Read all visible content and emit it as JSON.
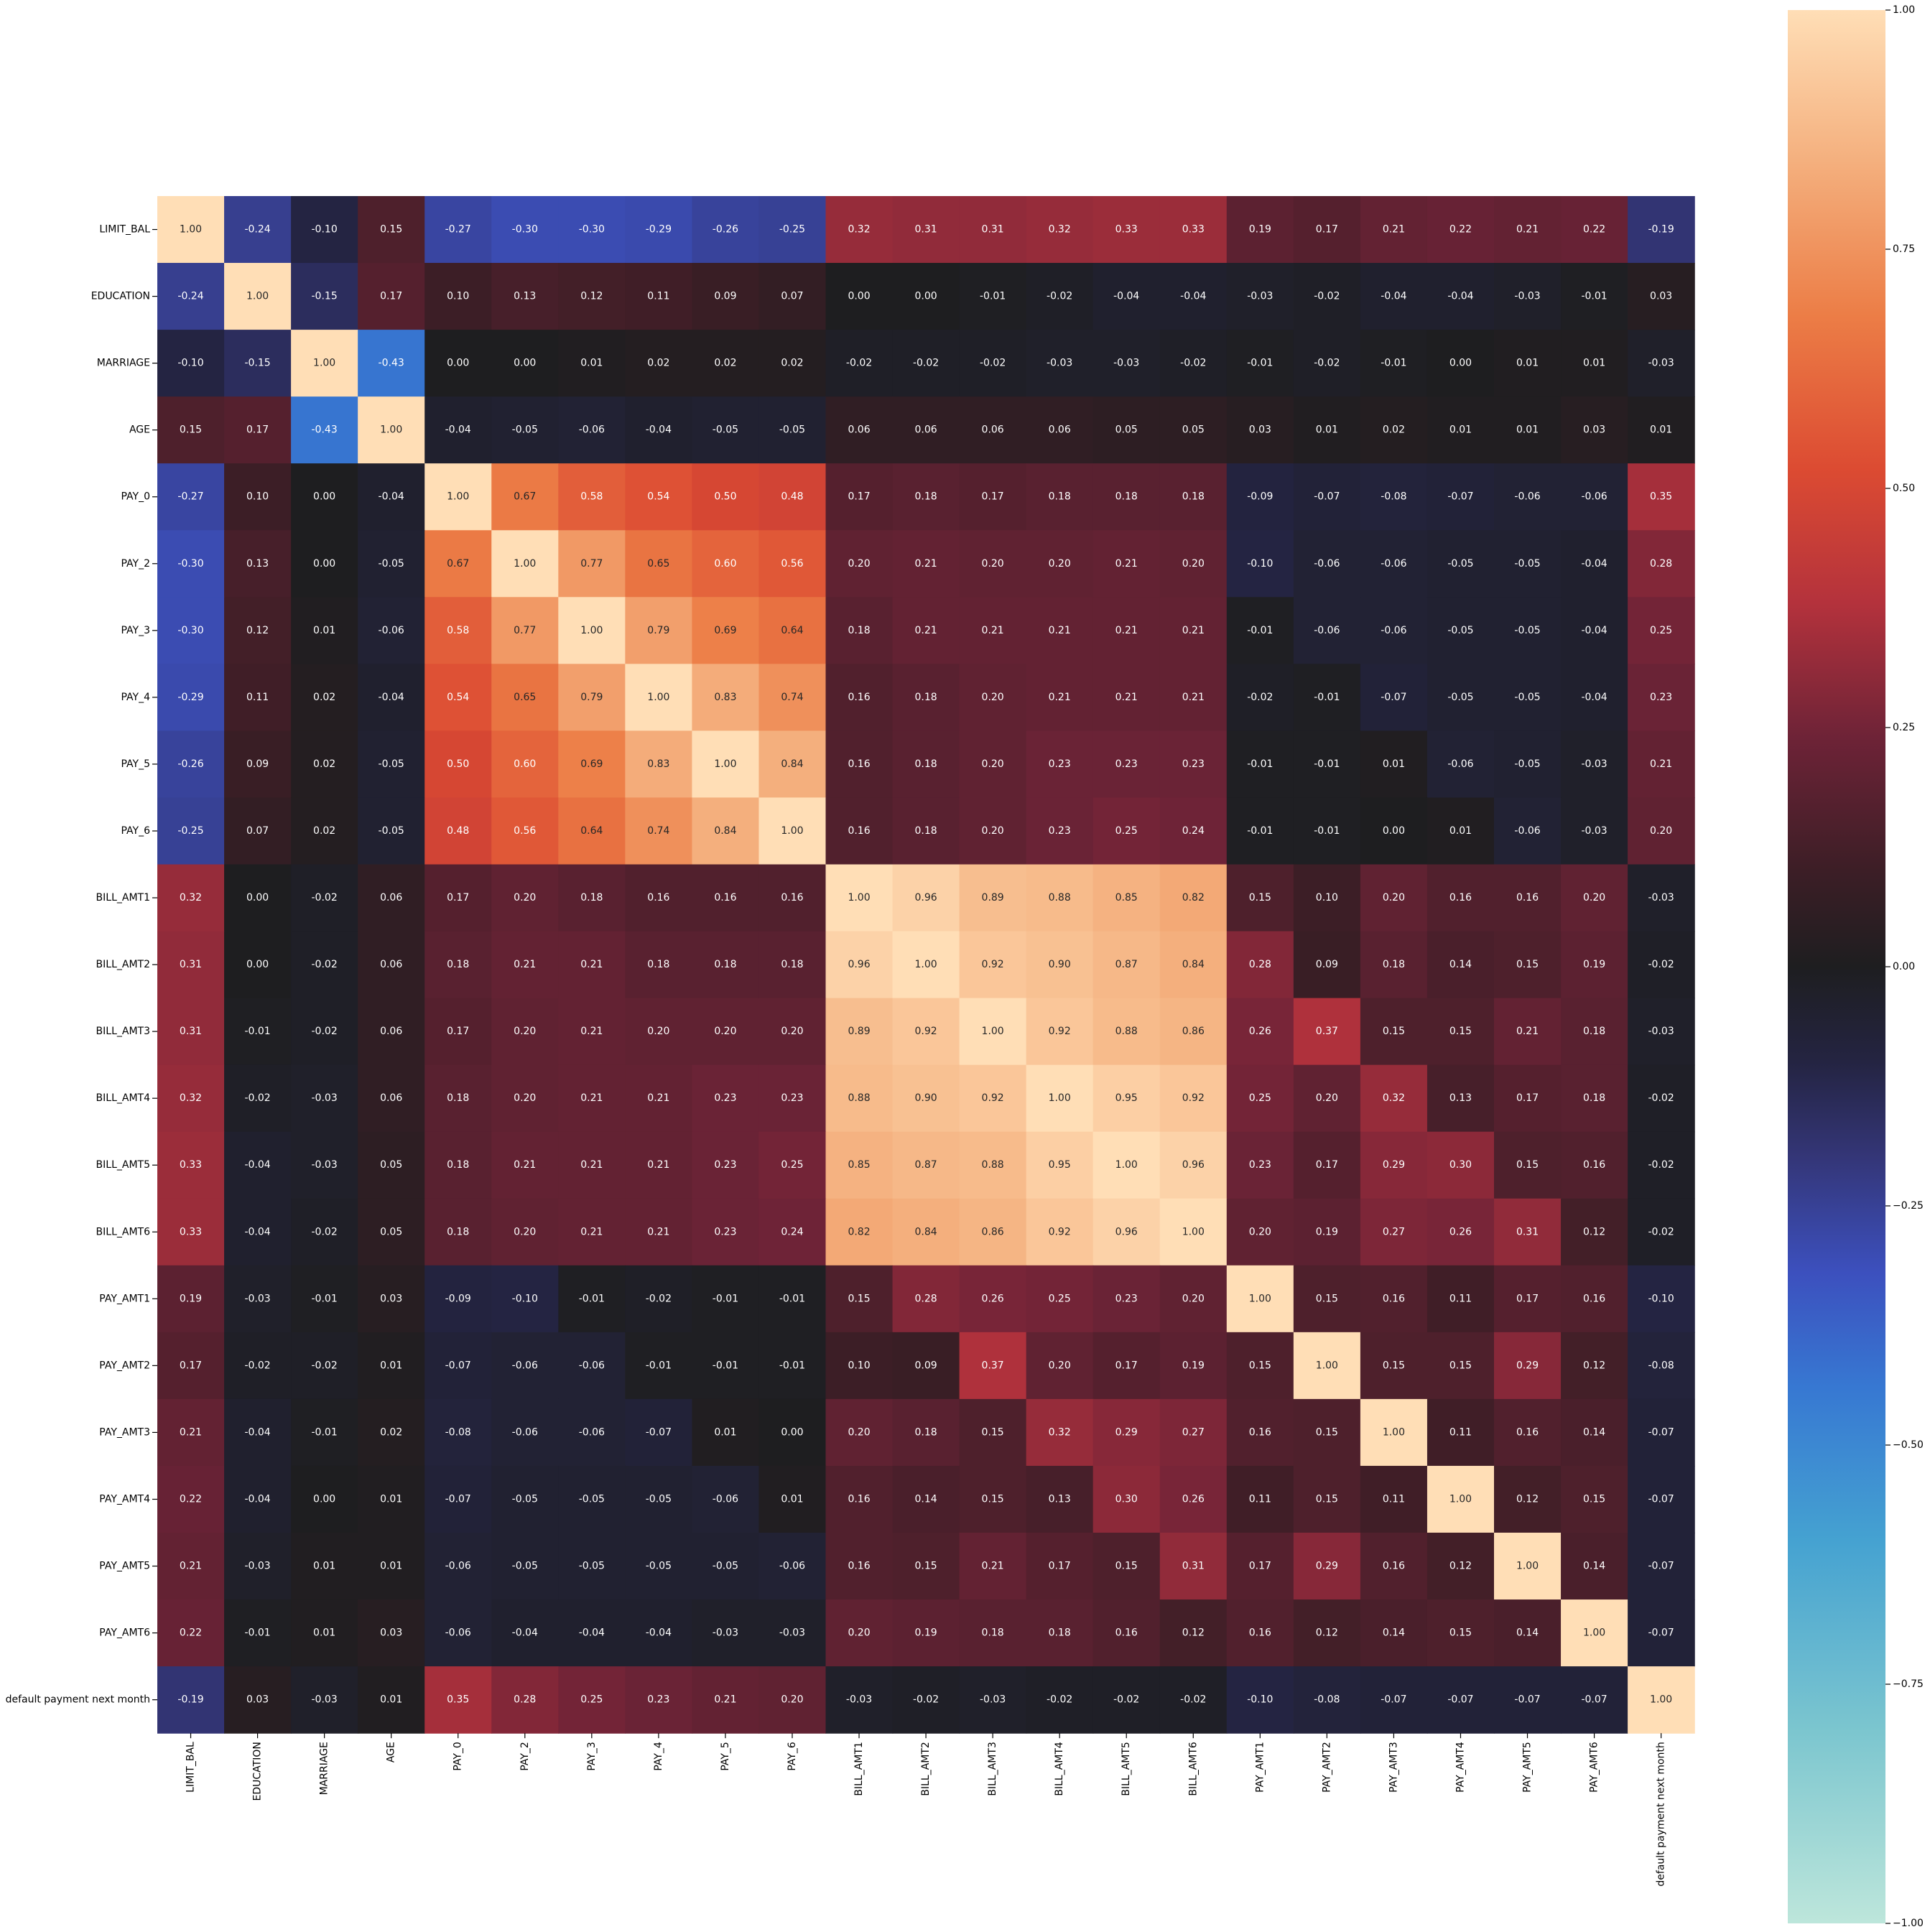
{
  "chart_data": {
    "type": "heatmap",
    "title": "",
    "xlabel": "",
    "ylabel": "",
    "variables": [
      "LIMIT_BAL",
      "EDUCATION",
      "MARRIAGE",
      "AGE",
      "PAY_0",
      "PAY_2",
      "PAY_3",
      "PAY_4",
      "PAY_5",
      "PAY_6",
      "BILL_AMT1",
      "BILL_AMT2",
      "BILL_AMT3",
      "BILL_AMT4",
      "BILL_AMT5",
      "BILL_AMT6",
      "PAY_AMT1",
      "PAY_AMT2",
      "PAY_AMT3",
      "PAY_AMT4",
      "PAY_AMT5",
      "PAY_AMT6",
      "default payment next month"
    ],
    "values": [
      [
        1.0,
        -0.24,
        -0.1,
        0.15,
        -0.27,
        -0.3,
        -0.3,
        -0.29,
        -0.26,
        -0.25,
        0.32,
        0.31,
        0.31,
        0.32,
        0.33,
        0.33,
        0.19,
        0.17,
        0.21,
        0.22,
        0.21,
        0.22,
        -0.19
      ],
      [
        -0.24,
        1.0,
        -0.15,
        0.17,
        0.1,
        0.13,
        0.12,
        0.11,
        0.09,
        0.07,
        -0.0,
        -0.0,
        -0.01,
        -0.02,
        -0.04,
        -0.04,
        -0.03,
        -0.02,
        -0.04,
        -0.04,
        -0.03,
        -0.01,
        0.03
      ],
      [
        -0.1,
        -0.15,
        1.0,
        -0.43,
        0.0,
        0.0,
        0.01,
        0.02,
        0.02,
        0.02,
        -0.02,
        -0.02,
        -0.02,
        -0.03,
        -0.03,
        -0.02,
        -0.01,
        -0.02,
        -0.01,
        0.0,
        0.01,
        0.01,
        -0.03
      ],
      [
        0.15,
        0.17,
        -0.43,
        1.0,
        -0.04,
        -0.05,
        -0.06,
        -0.04,
        -0.05,
        -0.05,
        0.06,
        0.06,
        0.06,
        0.06,
        0.05,
        0.05,
        0.03,
        0.01,
        0.02,
        0.01,
        0.01,
        0.03,
        0.01
      ],
      [
        -0.27,
        0.1,
        0.0,
        -0.04,
        1.0,
        0.67,
        0.58,
        0.54,
        0.5,
        0.48,
        0.17,
        0.18,
        0.17,
        0.18,
        0.18,
        0.18,
        -0.09,
        -0.07,
        -0.08,
        -0.07,
        -0.06,
        -0.06,
        0.35
      ],
      [
        -0.3,
        0.13,
        0.0,
        -0.05,
        0.67,
        1.0,
        0.77,
        0.65,
        0.6,
        0.56,
        0.2,
        0.21,
        0.2,
        0.2,
        0.21,
        0.2,
        -0.1,
        -0.06,
        -0.06,
        -0.05,
        -0.05,
        -0.04,
        0.28
      ],
      [
        -0.3,
        0.12,
        0.01,
        -0.06,
        0.58,
        0.77,
        1.0,
        0.79,
        0.69,
        0.64,
        0.18,
        0.21,
        0.21,
        0.21,
        0.21,
        0.21,
        -0.01,
        -0.06,
        -0.06,
        -0.05,
        -0.05,
        -0.04,
        0.25
      ],
      [
        -0.29,
        0.11,
        0.02,
        -0.04,
        0.54,
        0.65,
        0.79,
        1.0,
        0.83,
        0.74,
        0.16,
        0.18,
        0.2,
        0.21,
        0.21,
        0.21,
        -0.02,
        -0.01,
        -0.07,
        -0.05,
        -0.05,
        -0.04,
        0.23
      ],
      [
        -0.26,
        0.09,
        0.02,
        -0.05,
        0.5,
        0.6,
        0.69,
        0.83,
        1.0,
        0.84,
        0.16,
        0.18,
        0.2,
        0.23,
        0.23,
        0.23,
        -0.01,
        -0.01,
        0.01,
        -0.06,
        -0.05,
        -0.03,
        0.21
      ],
      [
        -0.25,
        0.07,
        0.02,
        -0.05,
        0.48,
        0.56,
        0.64,
        0.74,
        0.84,
        1.0,
        0.16,
        0.18,
        0.2,
        0.23,
        0.25,
        0.24,
        -0.01,
        -0.01,
        0.0,
        0.01,
        -0.06,
        -0.03,
        0.2
      ],
      [
        0.32,
        -0.0,
        -0.02,
        0.06,
        0.17,
        0.2,
        0.18,
        0.16,
        0.16,
        0.16,
        1.0,
        0.96,
        0.89,
        0.88,
        0.85,
        0.82,
        0.15,
        0.1,
        0.2,
        0.16,
        0.16,
        0.2,
        -0.03
      ],
      [
        0.31,
        -0.0,
        -0.02,
        0.06,
        0.18,
        0.21,
        0.21,
        0.18,
        0.18,
        0.18,
        0.96,
        1.0,
        0.92,
        0.9,
        0.87,
        0.84,
        0.28,
        0.09,
        0.18,
        0.14,
        0.15,
        0.19,
        -0.02
      ],
      [
        0.31,
        -0.01,
        -0.02,
        0.06,
        0.17,
        0.2,
        0.21,
        0.2,
        0.2,
        0.2,
        0.89,
        0.92,
        1.0,
        0.92,
        0.88,
        0.86,
        0.26,
        0.37,
        0.15,
        0.15,
        0.21,
        0.18,
        -0.03
      ],
      [
        0.32,
        -0.02,
        -0.03,
        0.06,
        0.18,
        0.2,
        0.21,
        0.21,
        0.23,
        0.23,
        0.88,
        0.9,
        0.92,
        1.0,
        0.95,
        0.92,
        0.25,
        0.2,
        0.32,
        0.13,
        0.17,
        0.18,
        -0.02
      ],
      [
        0.33,
        -0.04,
        -0.03,
        0.05,
        0.18,
        0.21,
        0.21,
        0.21,
        0.23,
        0.25,
        0.85,
        0.87,
        0.88,
        0.95,
        1.0,
        0.96,
        0.23,
        0.17,
        0.29,
        0.3,
        0.15,
        0.16,
        -0.02
      ],
      [
        0.33,
        -0.04,
        -0.02,
        0.05,
        0.18,
        0.2,
        0.21,
        0.21,
        0.23,
        0.24,
        0.82,
        0.84,
        0.86,
        0.92,
        0.96,
        1.0,
        0.2,
        0.19,
        0.27,
        0.26,
        0.31,
        0.12,
        -0.02
      ],
      [
        0.19,
        -0.03,
        -0.01,
        0.03,
        -0.09,
        -0.1,
        -0.01,
        -0.02,
        -0.01,
        -0.01,
        0.15,
        0.28,
        0.26,
        0.25,
        0.23,
        0.2,
        1.0,
        0.15,
        0.16,
        0.11,
        0.17,
        0.16,
        -0.1
      ],
      [
        0.17,
        -0.02,
        -0.02,
        0.01,
        -0.07,
        -0.06,
        -0.06,
        -0.01,
        -0.01,
        -0.01,
        0.1,
        0.09,
        0.37,
        0.2,
        0.17,
        0.19,
        0.15,
        1.0,
        0.15,
        0.15,
        0.29,
        0.12,
        -0.08
      ],
      [
        0.21,
        -0.04,
        -0.01,
        0.02,
        -0.08,
        -0.06,
        -0.06,
        -0.07,
        0.01,
        0.0,
        0.2,
        0.18,
        0.15,
        0.32,
        0.29,
        0.27,
        0.16,
        0.15,
        1.0,
        0.11,
        0.16,
        0.14,
        -0.07
      ],
      [
        0.22,
        -0.04,
        0.0,
        0.01,
        -0.07,
        -0.05,
        -0.05,
        -0.05,
        -0.06,
        0.01,
        0.16,
        0.14,
        0.15,
        0.13,
        0.3,
        0.26,
        0.11,
        0.15,
        0.11,
        1.0,
        0.12,
        0.15,
        -0.07
      ],
      [
        0.21,
        -0.03,
        0.01,
        0.01,
        -0.06,
        -0.05,
        -0.05,
        -0.05,
        -0.05,
        -0.06,
        0.16,
        0.15,
        0.21,
        0.17,
        0.15,
        0.31,
        0.17,
        0.29,
        0.16,
        0.12,
        1.0,
        0.14,
        -0.07
      ],
      [
        0.22,
        -0.01,
        0.01,
        0.03,
        -0.06,
        -0.04,
        -0.04,
        -0.04,
        -0.03,
        -0.03,
        0.2,
        0.19,
        0.18,
        0.18,
        0.16,
        0.12,
        0.16,
        0.12,
        0.14,
        0.15,
        0.14,
        1.0,
        -0.07
      ],
      [
        -0.19,
        0.03,
        -0.03,
        0.01,
        0.35,
        0.28,
        0.25,
        0.23,
        0.21,
        0.2,
        -0.03,
        -0.02,
        -0.03,
        -0.02,
        -0.02,
        -0.02,
        -0.1,
        -0.08,
        -0.07,
        -0.07,
        -0.07,
        -0.07,
        1.0
      ]
    ],
    "value_format": "0.00",
    "vmin": -1.0,
    "vmax": 1.0,
    "center": 0.0,
    "colormap": "icefire",
    "colorbar": {
      "ticks": [
        1.0,
        0.75,
        0.5,
        0.25,
        0.0,
        -0.25,
        -0.5,
        -0.75,
        -1.0
      ],
      "tick_labels": [
        "1.00",
        "0.75",
        "0.50",
        "0.25",
        "0.00",
        "−0.25",
        "−0.50",
        "−0.75",
        "−1.00"
      ],
      "placement": "right"
    },
    "annotations": true,
    "grid": false
  }
}
